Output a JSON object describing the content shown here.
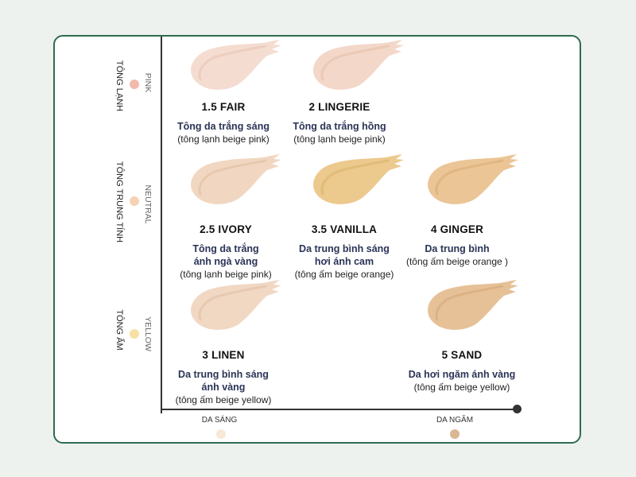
{
  "y_axis": [
    {
      "group_label": "TÔNG LẠNH",
      "side_label": "PINK",
      "dot_color": "#f2b9ad"
    },
    {
      "group_label": "TÔNG TRUNG TÍNH",
      "side_label": "NEUTRAL",
      "dot_color": "#f6d2b5"
    },
    {
      "group_label": "TÔNG ẤM",
      "side_label": "YELLOW",
      "dot_color": "#f7e0a4"
    }
  ],
  "x_axis": [
    {
      "label": "DA SÁNG",
      "dot_color": "#f8e8d6"
    },
    {
      "label": "DA NGĂM",
      "dot_color": "#d9b793"
    }
  ],
  "shades": [
    {
      "name": "1.5 FAIR",
      "desc": [
        "Tông da trắng sáng"
      ],
      "tone": [
        "(tông lạnh beige pink)"
      ],
      "color": "#f4dcd0",
      "shadow": "#e6c3b3"
    },
    {
      "name": "2 LINGERIE",
      "desc": [
        "Tông da trắng hồng"
      ],
      "tone": [
        "(tông lạnh beige pink)"
      ],
      "color": "#f3d7c8",
      "shadow": "#e3bda9"
    },
    {
      "name": "2.5 IVORY",
      "desc": [
        "Tông da trắng",
        "ánh ngà vàng"
      ],
      "tone": [
        "(tông lạnh beige pink)"
      ],
      "color": "#f1d7c1",
      "shadow": "#dfbc9f"
    },
    {
      "name": "3.5 VANILLA",
      "desc": [
        "Da trung bình sáng",
        "hơi ánh cam"
      ],
      "tone": [
        "(tông ấm beige orange)"
      ],
      "color": "#ecc98c",
      "shadow": "#d8ae6a"
    },
    {
      "name": "4 GINGER",
      "desc": [
        "Da trung bình"
      ],
      "tone": [
        "(tông ấm beige orange )"
      ],
      "color": "#ebc595",
      "shadow": "#d7aa73"
    },
    {
      "name": "3 LINEN",
      "desc": [
        "Da trung bình sáng",
        "ánh vàng"
      ],
      "tone": [
        "(tông ấm beige yellow)"
      ],
      "color": "#f1d8c3",
      "shadow": "#dfbea3"
    },
    {
      "name": "5 SAND",
      "desc": [
        "Da hơi ngăm ánh vàng"
      ],
      "tone": [
        "(tông ấm beige yellow)"
      ],
      "color": "#e6c197",
      "shadow": "#d1a676"
    }
  ]
}
